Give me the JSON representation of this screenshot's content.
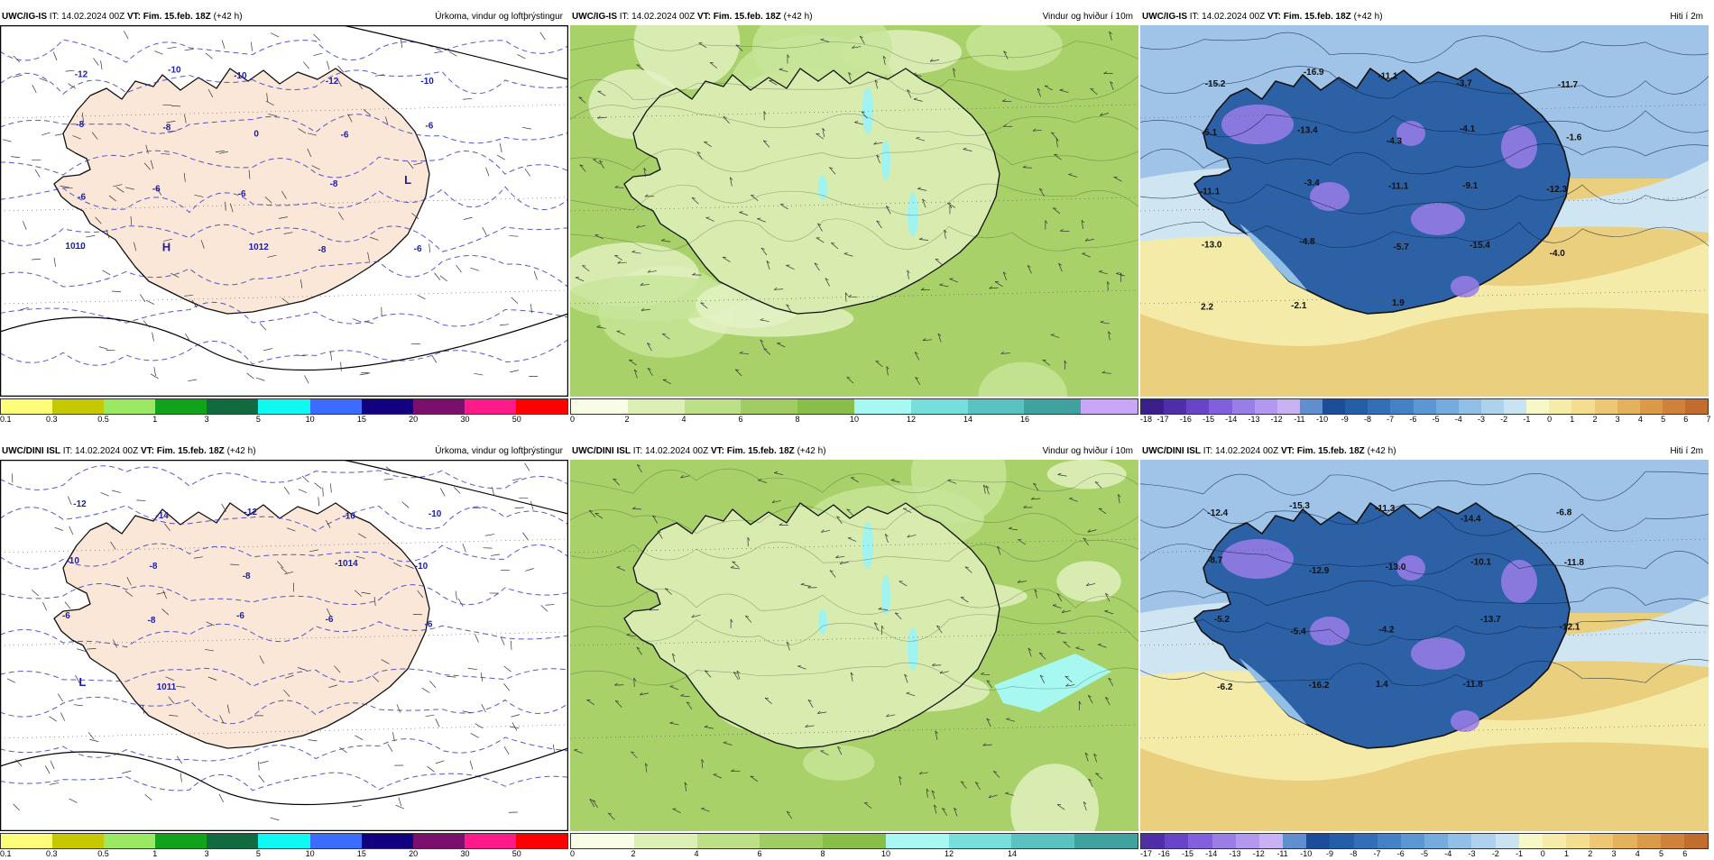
{
  "rows": [
    {
      "panels": [
        {
          "model": "UWC/IG-IS",
          "it_label": "IT:",
          "it_value": "14.02.2024 00Z",
          "vt_label": "VT:",
          "vt_value": "Fim. 15.feb. 18Z",
          "lead": "(+42 h)",
          "field_title": "Úrkoma, vindur og loftþrýstingur",
          "kind": "precip",
          "map_labels": [
            "-12",
            "-10",
            "-10",
            "-12",
            "-10",
            "-8",
            "-8",
            "0",
            "-6",
            "-6",
            "-6",
            "-6",
            "-6",
            "-8",
            "L",
            "1010",
            "H",
            "1012",
            "-8",
            "-6"
          ],
          "colorbar": {
            "colors": [
              "#fdfd7a",
              "#c6c900",
              "#9be863",
              "#11a31c",
              "#116b3e",
              "#0ff9f2",
              "#3c6cff",
              "#110080",
              "#7a0f6e",
              "#ff1a8a",
              "#ff0000"
            ],
            "ticks": [
              "0.1",
              "0.3",
              "0.5",
              "1",
              "3",
              "5",
              "10",
              "15",
              "20",
              "30",
              "50"
            ]
          }
        },
        {
          "model": "UWC/IG-IS",
          "it_label": "IT:",
          "it_value": "14.02.2024 00Z",
          "vt_label": "VT:",
          "vt_value": "Fim. 15.feb. 18Z",
          "lead": "(+42 h)",
          "field_title": "Vindur og hviður í 10m",
          "kind": "wind",
          "map_labels": [],
          "colorbar": {
            "colors": [
              "#fafde6",
              "#dcefb4",
              "#bcdf87",
              "#9fcd63",
              "#89bf48",
              "#a6f8f1",
              "#76dfdc",
              "#5ac2c1",
              "#3fa29f",
              "#c9a6f6"
            ],
            "ticks": [
              "0",
              "2",
              "4",
              "6",
              "8",
              "10",
              "12",
              "14",
              "16"
            ]
          }
        },
        {
          "model": "UWC/IG-IS",
          "it_label": "IT:",
          "it_value": "14.02.2024 00Z",
          "vt_label": "VT:",
          "vt_value": "Fim. 15.feb. 18Z",
          "lead": "(+42 h)",
          "field_title": "Hiti í 2m",
          "kind": "temp",
          "map_labels": [
            "-15.2",
            "-16.9",
            "-11.1",
            "-3.7",
            "-11.7",
            "-5.1",
            "-13.4",
            "-4.3",
            "-4.1",
            "-1.6",
            "-11.1",
            "-3.4",
            "-11.1",
            "-9.1",
            "-12.3",
            "-13.0",
            "-4.8",
            "-5.7",
            "-15.4",
            "-4.0",
            "2.2",
            "-2.1",
            "1.9"
          ],
          "colorbar": {
            "colors": [
              "#3a1f8a",
              "#4e2fa8",
              "#6844c8",
              "#8060dc",
              "#9a7ee8",
              "#b398ef",
              "#c8b2f4",
              "#5f8fcf",
              "#1c4d9a",
              "#245ea8",
              "#336fb8",
              "#4582c5",
              "#5b97d2",
              "#75abdd",
              "#91bfe6",
              "#add2ee",
              "#cae3f0",
              "#f7f8c8",
              "#f6ecaa",
              "#f2de8e",
              "#ecc874",
              "#e4b25c",
              "#db9a48",
              "#cf833a",
              "#c26c2e"
            ],
            "ticks": [
              "-18",
              "-17",
              "-16",
              "-15",
              "-14",
              "-13",
              "-12",
              "-11",
              "-10",
              "-9",
              "-8",
              "-7",
              "-6",
              "-5",
              "-4",
              "-3",
              "-2",
              "-1",
              "0",
              "1",
              "2",
              "3",
              "4",
              "5",
              "6",
              "7"
            ]
          }
        }
      ]
    },
    {
      "panels": [
        {
          "model": "UWC/DINI ISL",
          "it_label": "IT:",
          "it_value": "14.02.2024 00Z",
          "vt_label": "VT:",
          "vt_value": "Fim. 15.feb. 18Z",
          "lead": "(+42 h)",
          "field_title": "Úrkoma, vindur og loftþrýstingur",
          "kind": "precip",
          "map_labels": [
            "-12",
            "-14",
            "-12",
            "-10",
            "-10",
            "-10",
            "-8",
            "-8",
            "-1014",
            "-10",
            "-6",
            "-8",
            "-6",
            "-6",
            "-6",
            "L",
            "1011"
          ],
          "colorbar": {
            "colors": [
              "#fdfd7a",
              "#c6c900",
              "#9be863",
              "#11a31c",
              "#116b3e",
              "#0ff9f2",
              "#3c6cff",
              "#110080",
              "#7a0f6e",
              "#ff1a8a",
              "#ff0000"
            ],
            "ticks": [
              "0.1",
              "0.3",
              "0.5",
              "1",
              "3",
              "5",
              "10",
              "15",
              "20",
              "30",
              "50"
            ]
          }
        },
        {
          "model": "UWC/DINI ISL",
          "it_label": "IT:",
          "it_value": "14.02.2024 00Z",
          "vt_label": "VT:",
          "vt_value": "Fim. 15.feb. 18Z",
          "lead": "(+42 h)",
          "field_title": "Vindur og hviður í 10m",
          "kind": "wind",
          "map_labels": [],
          "colorbar": {
            "colors": [
              "#fafde6",
              "#dcefb4",
              "#bcdf87",
              "#9fcd63",
              "#89bf48",
              "#a6f8f1",
              "#76dfdc",
              "#5ac2c1",
              "#3fa29f"
            ],
            "ticks": [
              "0",
              "2",
              "4",
              "6",
              "8",
              "10",
              "12",
              "14"
            ]
          }
        },
        {
          "model": "UWC/DINI ISL",
          "it_label": "IT:",
          "it_value": "14.02.2024 00Z",
          "vt_label": "VT:",
          "vt_value": "Fim. 15.feb. 18Z",
          "lead": "(+42 h)",
          "field_title": "Hiti í 2m",
          "kind": "temp",
          "map_labels": [
            "-12.4",
            "-15.3",
            "-11.3",
            "-14.4",
            "-6.8",
            "-8.7",
            "-12.9",
            "-13.0",
            "-10.1",
            "-11.8",
            "-5.2",
            "-5.4",
            "-4.2",
            "-13.7",
            "-12.1",
            "-6.2",
            "-16.2",
            "1.4",
            "-11.8"
          ],
          "colorbar": {
            "colors": [
              "#4e2fa8",
              "#6844c8",
              "#8060dc",
              "#9a7ee8",
              "#b398ef",
              "#c8b2f4",
              "#5f8fcf",
              "#1c4d9a",
              "#245ea8",
              "#336fb8",
              "#4582c5",
              "#5b97d2",
              "#75abdd",
              "#91bfe6",
              "#add2ee",
              "#cae3f0",
              "#f7f8c8",
              "#f6ecaa",
              "#f2de8e",
              "#ecc874",
              "#e4b25c",
              "#db9a48",
              "#cf833a",
              "#c26c2e"
            ],
            "ticks": [
              "-17",
              "-16",
              "-15",
              "-14",
              "-13",
              "-12",
              "-11",
              "-10",
              "-9",
              "-8",
              "-7",
              "-6",
              "-5",
              "-4",
              "-3",
              "-2",
              "-1",
              "0",
              "1",
              "2",
              "3",
              "4",
              "5",
              "6"
            ]
          }
        }
      ]
    }
  ]
}
